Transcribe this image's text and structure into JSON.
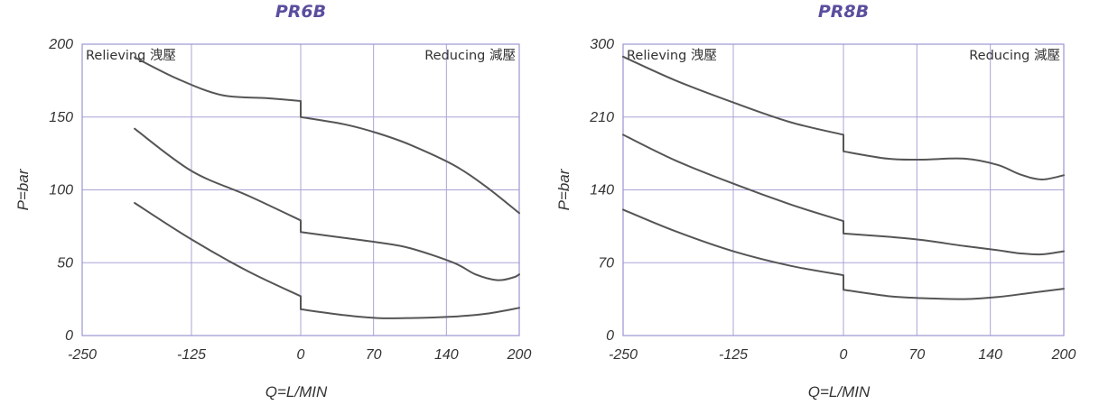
{
  "chart_data": [
    {
      "type": "line",
      "title": "PR6B",
      "xlabel": "Q=L/MIN",
      "ylabel": "P=bar",
      "x_ticks": [
        "-250",
        "-125",
        "0",
        "70",
        "140",
        "200"
      ],
      "y_ticks": [
        "0",
        "50",
        "100",
        "150",
        "200"
      ],
      "ylim": [
        0,
        200
      ],
      "grid": true,
      "region_labels": {
        "left": "Relieving 洩壓",
        "right": "Reducing 減壓"
      },
      "series": [
        {
          "points": [
            [
              -190,
              191
            ],
            [
              -140,
              176
            ],
            [
              -90,
              165
            ],
            [
              -40,
              163
            ],
            [
              0,
              161
            ],
            [
              0,
              150
            ],
            [
              40,
              145
            ],
            [
              70,
              139
            ],
            [
              100,
              131
            ],
            [
              140,
              117
            ],
            [
              170,
              102
            ],
            [
              200,
              84
            ]
          ]
        },
        {
          "points": [
            [
              -190,
              142
            ],
            [
              -125,
              113
            ],
            [
              -60,
              96
            ],
            [
              0,
              79
            ],
            [
              0,
              71
            ],
            [
              40,
              67
            ],
            [
              70,
              64
            ],
            [
              100,
              60
            ],
            [
              140,
              50
            ],
            [
              160,
              42
            ],
            [
              180,
              38
            ],
            [
              195,
              40
            ],
            [
              200,
              42
            ]
          ]
        },
        {
          "points": [
            [
              -190,
              91
            ],
            [
              -125,
              66
            ],
            [
              -60,
              44
            ],
            [
              0,
              27
            ],
            [
              0,
              18
            ],
            [
              40,
              14
            ],
            [
              70,
              12
            ],
            [
              100,
              12
            ],
            [
              140,
              13
            ],
            [
              170,
              15
            ],
            [
              200,
              19
            ]
          ]
        }
      ]
    },
    {
      "type": "line",
      "title": "PR8B",
      "xlabel": "Q=L/MIN",
      "ylabel": "P=bar",
      "x_ticks": [
        "-250",
        "-125",
        "0",
        "70",
        "140",
        "200"
      ],
      "y_ticks": [
        "0",
        "70",
        "140",
        "210",
        "300"
      ],
      "ylim": [
        0,
        280
      ],
      "grid": true,
      "region_labels": {
        "left": "Relieving 洩壓",
        "right": "Reducing 減壓"
      },
      "series": [
        {
          "points": [
            [
              -250,
              268
            ],
            [
              -190,
              245
            ],
            [
              -125,
              224
            ],
            [
              -60,
              205
            ],
            [
              0,
              193
            ],
            [
              0,
              177
            ],
            [
              40,
              170
            ],
            [
              70,
              169
            ],
            [
              110,
              170
            ],
            [
              140,
              164
            ],
            [
              160,
              155
            ],
            [
              180,
              150
            ],
            [
              200,
              154
            ]
          ]
        },
        {
          "points": [
            [
              -250,
              193
            ],
            [
              -190,
              168
            ],
            [
              -125,
              146
            ],
            [
              -60,
              126
            ],
            [
              0,
              110
            ],
            [
              0,
              98
            ],
            [
              40,
              95
            ],
            [
              70,
              92
            ],
            [
              110,
              86
            ],
            [
              140,
              82
            ],
            [
              160,
              79
            ],
            [
              180,
              78
            ],
            [
              200,
              81
            ]
          ]
        },
        {
          "points": [
            [
              -250,
              121
            ],
            [
              -190,
              100
            ],
            [
              -125,
              81
            ],
            [
              -60,
              67
            ],
            [
              0,
              58
            ],
            [
              0,
              44
            ],
            [
              40,
              38
            ],
            [
              70,
              36
            ],
            [
              110,
              35
            ],
            [
              140,
              37
            ],
            [
              170,
              41
            ],
            [
              200,
              45
            ]
          ]
        }
      ]
    }
  ]
}
